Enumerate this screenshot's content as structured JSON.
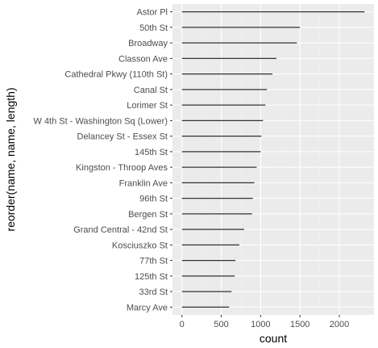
{
  "chart_data": {
    "type": "bar",
    "xlabel": "count",
    "ylabel": "reorder(name, name, length)",
    "xlim": [
      -120,
      2440
    ],
    "xticks": [
      0,
      500,
      1000,
      1500,
      2000
    ],
    "grid": true,
    "categories": [
      "Astor Pl",
      "50th St",
      "Broadway",
      "Classon Ave",
      "Cathedral Pkwy (110th St)",
      "Canal St",
      "Lorimer St",
      "W 4th St - Washington Sq (Lower)",
      "Delancey St - Essex St",
      "145th St",
      "Kingston - Throop Aves",
      "Franklin Ave",
      "96th St",
      "Bergen St",
      "Grand Central - 42nd St",
      "Kosciuszko St",
      "77th St",
      "125th St",
      "33rd St",
      "Marcy Ave"
    ],
    "values": [
      2320,
      1500,
      1460,
      1200,
      1150,
      1080,
      1060,
      1030,
      1010,
      1000,
      950,
      920,
      900,
      890,
      790,
      730,
      680,
      670,
      630,
      600
    ],
    "colors": {
      "panel": "#ebebeb",
      "grid_major": "#ffffff",
      "grid_minor": "#f2f2f2",
      "bar": "#333333",
      "tick": "#333333"
    }
  }
}
